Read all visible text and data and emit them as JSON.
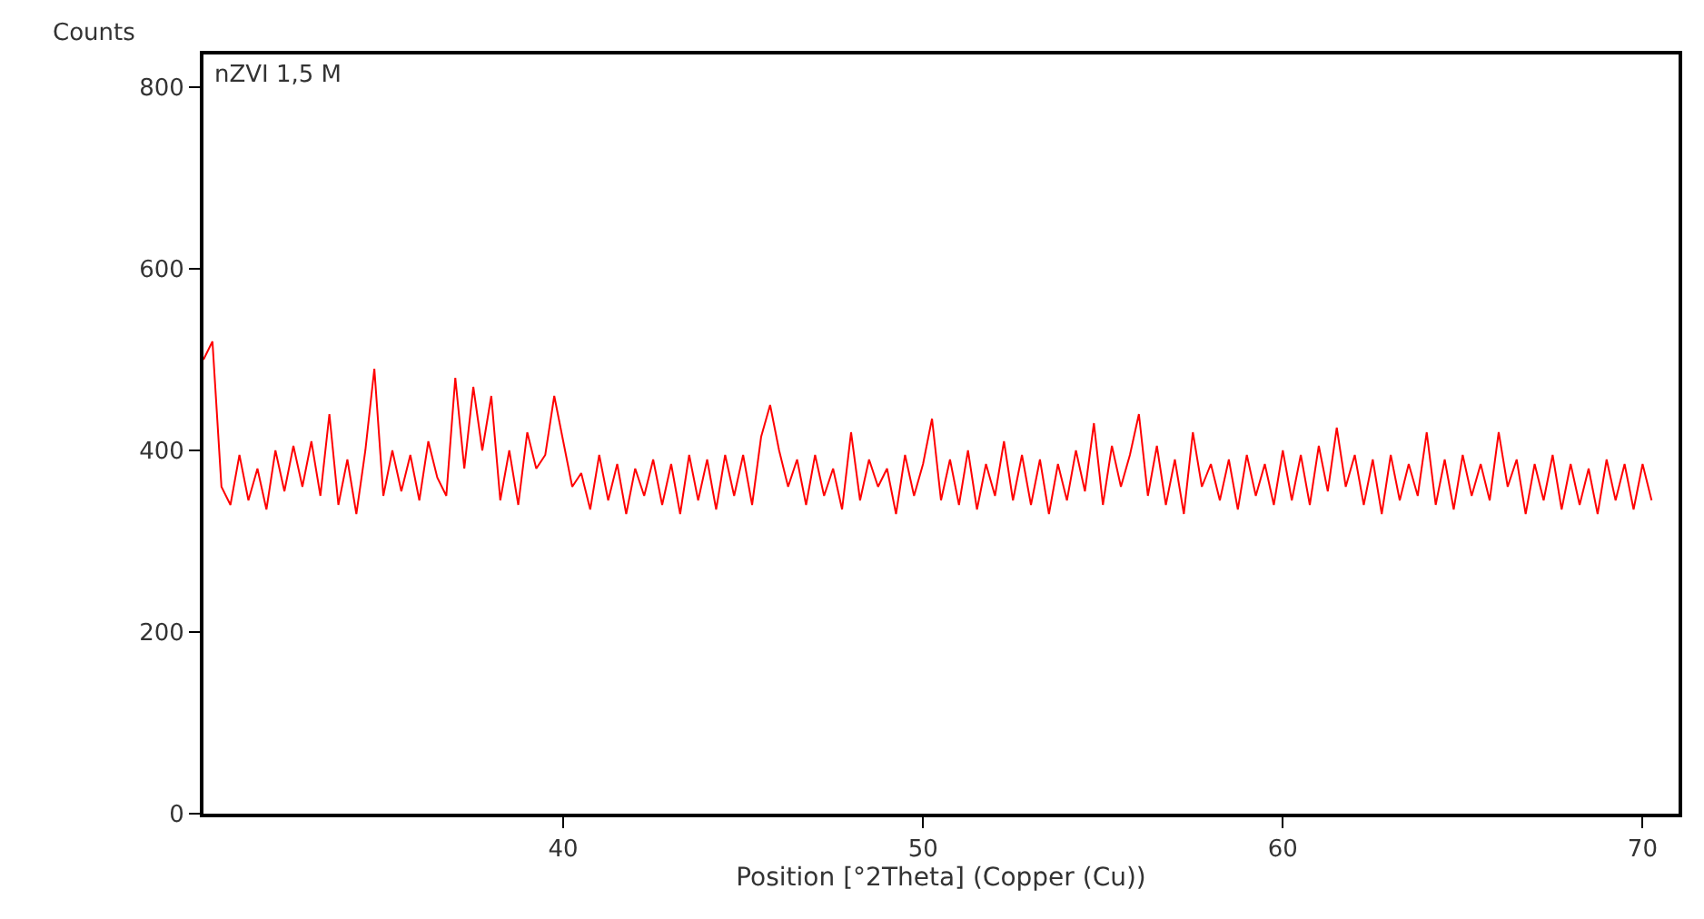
{
  "chart_data": {
    "type": "line",
    "ylabel": "Counts",
    "xlabel": "Position [°2Theta] (Copper (Cu))",
    "annotations": [
      "nZVI 1,5 M"
    ],
    "xlim": [
      30,
      71
    ],
    "xticks": [
      40,
      50,
      60,
      70
    ],
    "ylim": [
      0,
      836
    ],
    "yticks": [
      0,
      200,
      400,
      600,
      800
    ],
    "marker": "none",
    "line_style": "solid",
    "x": [
      30.0,
      30.25,
      30.5,
      30.75,
      31.0,
      31.25,
      31.5,
      31.75,
      32.0,
      32.25,
      32.5,
      32.75,
      33.0,
      33.25,
      33.5,
      33.75,
      34.0,
      34.25,
      34.5,
      34.75,
      35.0,
      35.25,
      35.5,
      35.75,
      36.0,
      36.25,
      36.5,
      36.75,
      37.0,
      37.25,
      37.5,
      37.75,
      38.0,
      38.25,
      38.5,
      38.75,
      39.0,
      39.25,
      39.5,
      39.75,
      40.0,
      40.25,
      40.5,
      40.75,
      41.0,
      41.25,
      41.5,
      41.75,
      42.0,
      42.25,
      42.5,
      42.75,
      43.0,
      43.25,
      43.5,
      43.75,
      44.0,
      44.25,
      44.5,
      44.75,
      45.0,
      45.25,
      45.5,
      45.75,
      46.0,
      46.25,
      46.5,
      46.75,
      47.0,
      47.25,
      47.5,
      47.75,
      48.0,
      48.25,
      48.5,
      48.75,
      49.0,
      49.25,
      49.5,
      49.75,
      50.0,
      50.25,
      50.5,
      50.75,
      51.0,
      51.25,
      51.5,
      51.75,
      52.0,
      52.25,
      52.5,
      52.75,
      53.0,
      53.25,
      53.5,
      53.75,
      54.0,
      54.25,
      54.5,
      54.75,
      55.0,
      55.25,
      55.5,
      55.75,
      56.0,
      56.25,
      56.5,
      56.75,
      57.0,
      57.25,
      57.5,
      57.75,
      58.0,
      58.25,
      58.5,
      58.75,
      59.0,
      59.25,
      59.5,
      59.75,
      60.0,
      60.25,
      60.5,
      60.75,
      61.0,
      61.25,
      61.5,
      61.75,
      62.0,
      62.25,
      62.5,
      62.75,
      63.0,
      63.25,
      63.5,
      63.75,
      64.0,
      64.25,
      64.5,
      64.75,
      65.0,
      65.25,
      65.5,
      65.75,
      66.0,
      66.25,
      66.5,
      66.75,
      67.0,
      67.25,
      67.5,
      67.75,
      68.0,
      68.25,
      68.5,
      68.75,
      69.0,
      69.25,
      69.5,
      69.75,
      70.0,
      70.25
    ],
    "series": [
      {
        "color": "#ff0000",
        "values": [
          500,
          520,
          360,
          340,
          395,
          345,
          380,
          335,
          400,
          355,
          405,
          360,
          410,
          350,
          440,
          340,
          390,
          330,
          400,
          490,
          350,
          400,
          355,
          395,
          345,
          410,
          370,
          350,
          480,
          380,
          470,
          400,
          460,
          345,
          400,
          340,
          420,
          380,
          395,
          460,
          410,
          360,
          375,
          335,
          395,
          345,
          385,
          330,
          380,
          350,
          390,
          340,
          385,
          330,
          395,
          345,
          390,
          335,
          395,
          350,
          395,
          340,
          415,
          450,
          400,
          360,
          390,
          340,
          395,
          350,
          380,
          335,
          420,
          345,
          390,
          360,
          380,
          330,
          395,
          350,
          385,
          435,
          345,
          390,
          340,
          400,
          335,
          385,
          350,
          410,
          345,
          395,
          340,
          390,
          330,
          385,
          345,
          400,
          355,
          430,
          340,
          405,
          360,
          395,
          440,
          350,
          405,
          340,
          390,
          330,
          420,
          360,
          385,
          345,
          390,
          335,
          395,
          350,
          385,
          340,
          400,
          345,
          395,
          340,
          405,
          355,
          425,
          360,
          395,
          340,
          390,
          330,
          395,
          345,
          385,
          350,
          420,
          340,
          390,
          335,
          395,
          350,
          385,
          345,
          420,
          360,
          390,
          330,
          385,
          345,
          395,
          335,
          385,
          340,
          380,
          330,
          390,
          345,
          385,
          335,
          385,
          345
        ]
      }
    ]
  }
}
